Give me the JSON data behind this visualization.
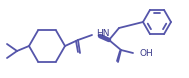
{
  "bg_color": "#ffffff",
  "line_color": "#5555aa",
  "line_width": 1.3,
  "text_color": "#3a3a8a",
  "font_size": 6.5
}
